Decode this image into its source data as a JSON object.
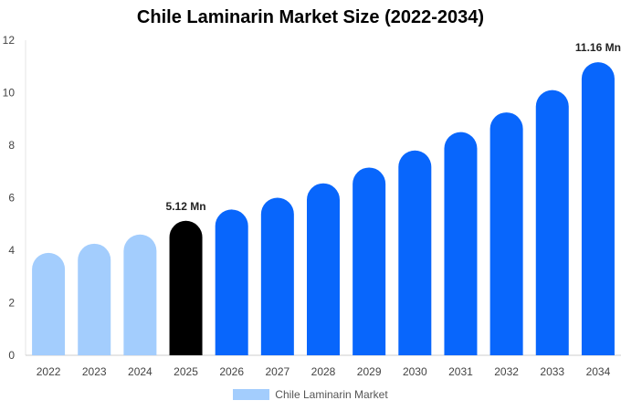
{
  "chart_data": {
    "type": "bar",
    "title": "Chile Laminarin Market Size (2022-2034)",
    "xlabel": "",
    "ylabel": "",
    "ylim": [
      0,
      12
    ],
    "yticks": [
      0,
      2,
      4,
      6,
      8,
      10,
      12
    ],
    "grid": false,
    "legend_position": "bottom-center",
    "categories": [
      "2022",
      "2023",
      "2024",
      "2025",
      "2026",
      "2027",
      "2028",
      "2029",
      "2030",
      "2031",
      "2032",
      "2033",
      "2034"
    ],
    "series": [
      {
        "name": "Chile Laminarin Market",
        "values": [
          3.9,
          4.25,
          4.6,
          5.12,
          5.55,
          6.0,
          6.55,
          7.15,
          7.8,
          8.5,
          9.25,
          10.1,
          11.16
        ]
      }
    ],
    "bar_colors": [
      "#a3cdfd",
      "#a3cdfd",
      "#a3cdfd",
      "#000000",
      "#0866fc",
      "#0866fc",
      "#0866fc",
      "#0866fc",
      "#0866fc",
      "#0866fc",
      "#0866fc",
      "#0866fc",
      "#0866fc"
    ],
    "data_labels": [
      {
        "index": 3,
        "text": "5.12 Mn"
      },
      {
        "index": 12,
        "text": "11.16 Mn"
      }
    ],
    "legend_color": "#a3cdfd"
  }
}
